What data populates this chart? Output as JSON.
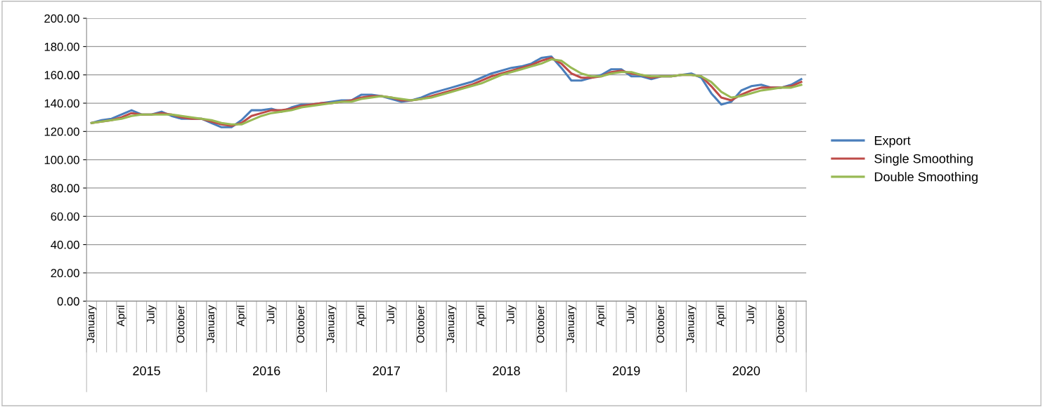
{
  "chart_data": {
    "type": "line",
    "categories": [
      "January",
      null,
      null,
      "April",
      null,
      null,
      "July",
      null,
      null,
      "October",
      null,
      null,
      "January",
      null,
      null,
      "April",
      null,
      null,
      "July",
      null,
      null,
      "October",
      null,
      null,
      "January",
      null,
      null,
      "April",
      null,
      null,
      "July",
      null,
      null,
      "October",
      null,
      null,
      "January",
      null,
      null,
      "April",
      null,
      null,
      "July",
      null,
      null,
      "October",
      null,
      null,
      "January",
      null,
      null,
      "April",
      null,
      null,
      "July",
      null,
      null,
      "October",
      null,
      null,
      "January",
      null,
      null,
      "April",
      null,
      null,
      "July",
      null,
      null,
      "October",
      null,
      null
    ],
    "annotations": [
      "2015",
      "2016",
      "2017",
      "2018",
      "2019",
      "2020"
    ],
    "series": [
      {
        "name": "Export",
        "color": "#4a7ebb",
        "values": [
          126,
          128,
          129,
          132,
          135,
          132,
          132,
          134,
          131,
          129,
          129,
          129,
          126,
          123,
          123,
          128,
          135,
          135,
          136,
          134,
          137,
          139,
          139,
          140,
          141,
          142,
          142,
          146,
          146,
          145,
          143,
          141,
          142,
          144,
          147,
          149,
          151,
          153,
          155,
          158,
          161,
          163,
          165,
          166,
          168,
          172,
          173,
          165,
          156,
          156,
          158,
          160,
          164,
          164,
          159,
          159,
          157,
          159,
          159,
          160,
          161,
          158,
          147,
          139,
          141,
          149,
          152,
          153,
          151,
          151,
          153,
          157
        ]
      },
      {
        "name": "Single Smoothing",
        "color": "#be4b48",
        "values": [
          126,
          127,
          128,
          130,
          133,
          132,
          132,
          133,
          132,
          130,
          129,
          129,
          127,
          125,
          124,
          126,
          131,
          133,
          135,
          135,
          136,
          138,
          139,
          140,
          140,
          141,
          142,
          144,
          145,
          145,
          144,
          142,
          142,
          143,
          145,
          147,
          149,
          151,
          153,
          156,
          159,
          161,
          163,
          165,
          167,
          170,
          172,
          168,
          161,
          158,
          158,
          159,
          162,
          163,
          161,
          160,
          158,
          159,
          159,
          160,
          160,
          159,
          152,
          144,
          142,
          146,
          149,
          151,
          151,
          151,
          152,
          155
        ]
      },
      {
        "name": "Double Smoothing",
        "color": "#98b954",
        "values": [
          126,
          127,
          128,
          129,
          131,
          132,
          132,
          132,
          132,
          131,
          130,
          129,
          128,
          126,
          125,
          125,
          128,
          131,
          133,
          134,
          135,
          137,
          138,
          139,
          140,
          141,
          141,
          143,
          144,
          145,
          144,
          143,
          142,
          143,
          144,
          146,
          148,
          150,
          152,
          154,
          157,
          160,
          162,
          164,
          166,
          168,
          171,
          170,
          165,
          161,
          159,
          159,
          161,
          162,
          162,
          160,
          159,
          159,
          159,
          160,
          160,
          159,
          155,
          148,
          144,
          145,
          147,
          149,
          150,
          151,
          151,
          153
        ]
      }
    ],
    "ylim": [
      0,
      200
    ],
    "yticks": [
      {
        "value": 0,
        "label": "0.00"
      },
      {
        "value": 20,
        "label": "20.00"
      },
      {
        "value": 40,
        "label": "40.00"
      },
      {
        "value": 60,
        "label": "60.00"
      },
      {
        "value": 80,
        "label": "80.00"
      },
      {
        "value": 100,
        "label": "100.00"
      },
      {
        "value": 120,
        "label": "120.00"
      },
      {
        "value": 140,
        "label": "140.00"
      },
      {
        "value": 160,
        "label": "160.00"
      },
      {
        "value": 180,
        "label": "180.00"
      },
      {
        "value": 200,
        "label": "200.00"
      }
    ],
    "grid": "y",
    "legend": "right",
    "marker": "none",
    "line_style": "solid"
  }
}
